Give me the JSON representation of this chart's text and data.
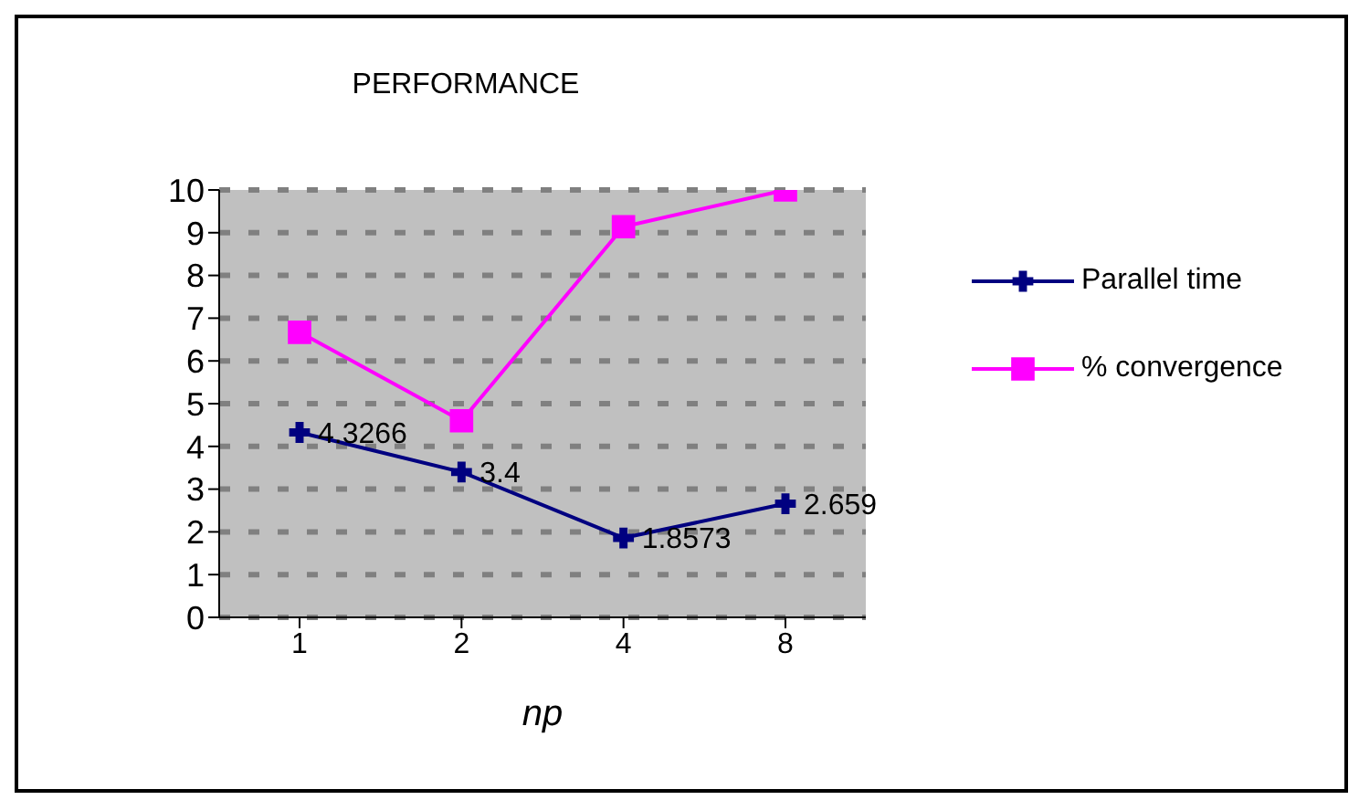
{
  "chart_data": {
    "type": "line",
    "title": "PERFORMANCE",
    "xlabel": "np",
    "categories": [
      "1",
      "2",
      "4",
      "8"
    ],
    "series": [
      {
        "name": "Parallel time",
        "color": "#000080",
        "values": [
          4.3266,
          3.4,
          1.8573,
          2.659
        ],
        "value_labels": [
          "4.3266",
          "3.4",
          "1.8573",
          "2.659"
        ],
        "marker": "cross"
      },
      {
        "name": "% convergence",
        "color": "#ff00ff",
        "values": [
          6.67,
          4.6,
          9.14,
          10
        ],
        "marker": "square"
      }
    ],
    "ylim": [
      0,
      10
    ],
    "yticks": [
      0,
      1,
      2,
      3,
      4,
      5,
      6,
      7,
      8,
      9,
      10
    ],
    "grid": "y",
    "line_style": "solid",
    "legend": "right"
  }
}
